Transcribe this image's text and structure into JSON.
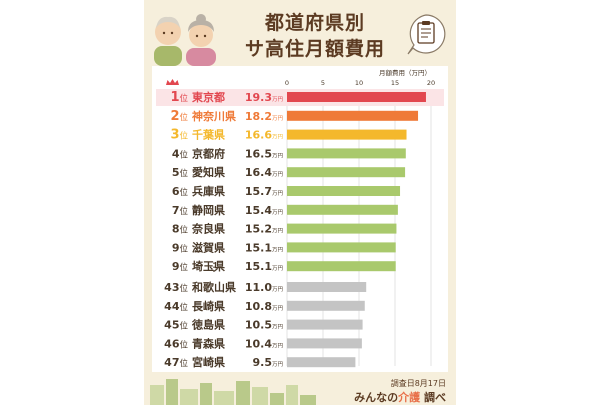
{
  "header": {
    "title_line1": "都道府県別",
    "title_line2": "サ高住月額費用"
  },
  "chart_data": {
    "type": "bar",
    "orientation": "horizontal",
    "title": "都道府県別 サ高住月額費用",
    "xlabel": "月額費用（万円）",
    "xlim": [
      0,
      20
    ],
    "xticks": [
      0,
      5,
      10,
      15,
      20
    ],
    "grid": true,
    "value_suffix": "万円",
    "rows": [
      {
        "rank": "1",
        "suffix": "位",
        "name": "東京都",
        "value": 19.3,
        "label": "19.3",
        "color": "#e2474f"
      },
      {
        "rank": "2",
        "suffix": "位",
        "name": "神奈川県",
        "value": 18.2,
        "label": "18.2",
        "color": "#ef7a38"
      },
      {
        "rank": "3",
        "suffix": "位",
        "name": "千葉県",
        "value": 16.6,
        "label": "16.6",
        "color": "#f4b82c"
      },
      {
        "rank": "4",
        "suffix": "位",
        "name": "京都府",
        "value": 16.5,
        "label": "16.5",
        "color": "#a9c96c"
      },
      {
        "rank": "5",
        "suffix": "位",
        "name": "愛知県",
        "value": 16.4,
        "label": "16.4",
        "color": "#a9c96c"
      },
      {
        "rank": "6",
        "suffix": "位",
        "name": "兵庫県",
        "value": 15.7,
        "label": "15.7",
        "color": "#a9c96c"
      },
      {
        "rank": "7",
        "suffix": "位",
        "name": "静岡県",
        "value": 15.4,
        "label": "15.4",
        "color": "#a9c96c"
      },
      {
        "rank": "8",
        "suffix": "位",
        "name": "奈良県",
        "value": 15.2,
        "label": "15.2",
        "color": "#a9c96c"
      },
      {
        "rank": "9",
        "suffix": "位",
        "name": "滋賀県",
        "value": 15.1,
        "label": "15.1",
        "color": "#a9c96c"
      },
      {
        "rank": "9",
        "suffix": "位",
        "name": "埼玉県",
        "value": 15.1,
        "label": "15.1",
        "color": "#a9c96c"
      },
      {
        "rank": "43",
        "suffix": "位",
        "name": "和歌山県",
        "value": 11.0,
        "label": "11.0",
        "color": "#c4c4c4"
      },
      {
        "rank": "44",
        "suffix": "位",
        "name": "長崎県",
        "value": 10.8,
        "label": "10.8",
        "color": "#c4c4c4"
      },
      {
        "rank": "45",
        "suffix": "位",
        "name": "徳島県",
        "value": 10.5,
        "label": "10.5",
        "color": "#c4c4c4"
      },
      {
        "rank": "46",
        "suffix": "位",
        "name": "青森県",
        "value": 10.4,
        "label": "10.4",
        "color": "#c4c4c4"
      },
      {
        "rank": "47",
        "suffix": "位",
        "name": "宮崎県",
        "value": 9.5,
        "label": "9.5",
        "color": "#c4c4c4"
      }
    ],
    "rank_colors": {
      "top1": "#e2474f",
      "top2": "#ef7a38",
      "top3": "#f4b82c",
      "default": "#4a3a2a"
    },
    "gap_marker": "⋮"
  },
  "footer": {
    "survey_date": "調査日8月17日",
    "brand_pre": "みんなの",
    "brand_mid": "介護",
    "brand_post": " 調べ"
  },
  "icons": [
    "elderly-couple-icon",
    "clipboard-icon",
    "crown-icon",
    "city-skyline-icon"
  ]
}
